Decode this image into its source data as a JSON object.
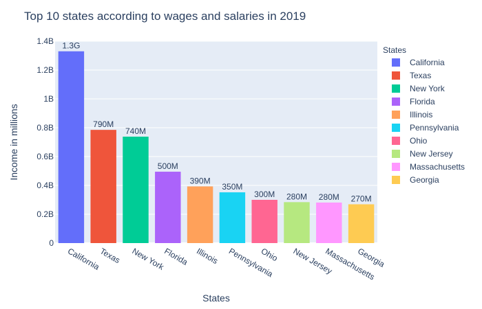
{
  "chart_data": {
    "type": "bar",
    "title": "Top 10 states according to wages and salaries in 2019",
    "xlabel": "States",
    "ylabel": "Income in millions",
    "ylim": [
      0,
      1400000000
    ],
    "yticks": [
      {
        "value": 0,
        "label": "0"
      },
      {
        "value": 200000000,
        "label": "0.2B"
      },
      {
        "value": 400000000,
        "label": "0.4B"
      },
      {
        "value": 600000000,
        "label": "0.6B"
      },
      {
        "value": 800000000,
        "label": "0.8B"
      },
      {
        "value": 1000000000,
        "label": "1B"
      },
      {
        "value": 1200000000,
        "label": "1.2B"
      },
      {
        "value": 1400000000,
        "label": "1.4B"
      }
    ],
    "grid": true,
    "legend": {
      "title": "States",
      "position": "right"
    },
    "categories": [
      "California",
      "Texas",
      "New York",
      "Florida",
      "Illinois",
      "Pennsylvania",
      "Ohio",
      "New Jersey",
      "Massachusetts",
      "Georgia"
    ],
    "values": [
      1330000000,
      785000000,
      738000000,
      495000000,
      393000000,
      352000000,
      300000000,
      284000000,
      281000000,
      269000000
    ],
    "data_labels": [
      "1.3G",
      "790M",
      "740M",
      "500M",
      "390M",
      "350M",
      "300M",
      "280M",
      "280M",
      "270M"
    ],
    "colors": [
      "#636efa",
      "#EF553B",
      "#00cc96",
      "#ab63fa",
      "#FFA15A",
      "#19d3f3",
      "#FF6692",
      "#B6E880",
      "#FF97FF",
      "#FECB52"
    ]
  }
}
